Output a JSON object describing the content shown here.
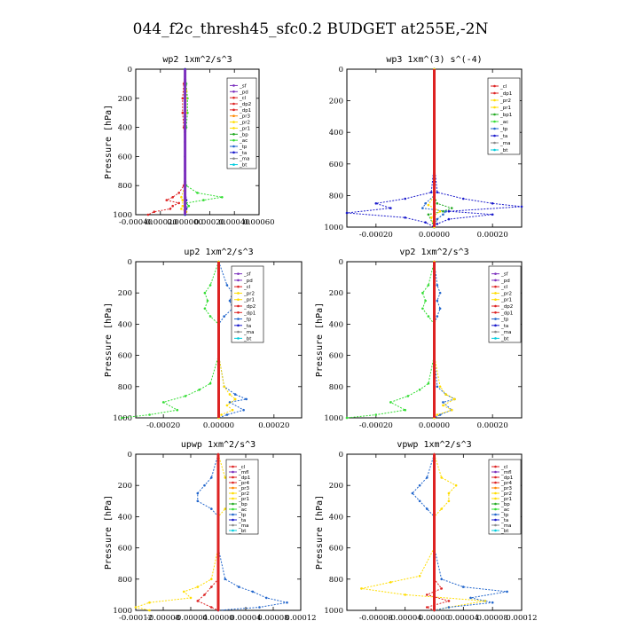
{
  "figure": {
    "title": "044_f2c_thresh45_sfc0.2  BUDGET at255E,-2N"
  },
  "colors": {
    "sf": "#7b2fbe",
    "pd": "#7b2fbe",
    "cl": "#dd2222",
    "dp2": "#dd2222",
    "dp1": "#dd2222",
    "pr4": "#dd2222",
    "pr3": "#ff8800",
    "pr2": "#ffdd00",
    "pr1": "#ffdd00",
    "bp": "#22aa22",
    "bp1": "#22aa22",
    "ac": "#33dd33",
    "tp": "#2266cc",
    "ta": "#1a1acc",
    "ma": "#888888",
    "bt": "#00ccdd",
    "mfl": "#7b2fbe"
  },
  "chart_data": [
    {
      "type": "line",
      "title": "wp2   1xm^2/s^3",
      "ylabel": "Pressure [hPa]",
      "ylim": [
        1000,
        0
      ],
      "xlim": [
        -0.0004,
        0.0006
      ],
      "xticks": [
        -0.0004,
        -0.0002,
        0.0,
        0.0002,
        0.0004,
        0.0006
      ],
      "xtick_labels": [
        "-0.00040",
        "-0.00020",
        "0.000000",
        "0.00020",
        "0.00040",
        "0.00060"
      ],
      "yticks": [
        0,
        200,
        400,
        600,
        800,
        1000
      ],
      "legend": [
        "_sf",
        "_pd",
        "_cl",
        "_dp2",
        "_dp1",
        "_pr3",
        "_pr2",
        "_pr1",
        "_bp",
        "_ac",
        "_tp",
        "_ta",
        "_ma",
        "_bt"
      ],
      "legend_keys": [
        "sf",
        "pd",
        "cl",
        "dp2",
        "dp1",
        "pr3",
        "pr2",
        "pr1",
        "bp",
        "ac",
        "tp",
        "ta",
        "ma",
        "bt"
      ],
      "series": [
        {
          "key": "ac",
          "y": [
            0,
            100,
            200,
            300,
            400,
            500,
            600,
            700,
            800,
            850,
            880,
            900,
            920,
            940,
            960,
            980,
            1000
          ],
          "x": [
            0,
            1e-05,
            2e-05,
            2e-05,
            1e-05,
            0,
            0,
            0,
            1e-05,
            0.0001,
            0.0003,
            0.00015,
            1e-05,
            3e-05,
            1e-05,
            0,
            0
          ]
        },
        {
          "key": "dp1",
          "y": [
            0,
            100,
            200,
            300,
            400,
            500,
            600,
            700,
            800,
            850,
            880,
            900,
            920,
            940,
            960,
            980,
            1000
          ],
          "x": [
            0,
            -1e-05,
            -2e-05,
            -2e-05,
            -1e-05,
            0,
            0,
            0,
            -1e-05,
            -5e-05,
            -0.0001,
            -0.00015,
            -5e-05,
            -0.0001,
            -0.00012,
            -0.00025,
            -0.0003
          ]
        },
        {
          "key": "pr2",
          "y": [
            0,
            150,
            200,
            300,
            400,
            600,
            800,
            880,
            900,
            940,
            960,
            980,
            1000
          ],
          "x": [
            0,
            1e-05,
            1e-05,
            1e-05,
            0,
            0,
            0,
            -3e-05,
            -2e-05,
            -2e-05,
            -3e-05,
            1e-05,
            0
          ]
        },
        {
          "key": "ta",
          "y": [
            0,
            200,
            400,
            600,
            800,
            900,
            960,
            980,
            1000
          ],
          "x": [
            0,
            0,
            0,
            0,
            0,
            1e-05,
            1e-05,
            0,
            0
          ]
        },
        {
          "key": "sf",
          "y": [
            0,
            200,
            400,
            600,
            800,
            900,
            1000
          ],
          "x": [
            0,
            0,
            0,
            0,
            0,
            0,
            0
          ]
        }
      ]
    },
    {
      "type": "line",
      "title": "wp3   1xm^(3) s^(-4)",
      "ylabel": "",
      "ylim": [
        1000,
        0
      ],
      "xlim": [
        -0.0003,
        0.0003
      ],
      "xticks": [
        -0.0002,
        0.0,
        0.0002
      ],
      "xtick_labels": [
        "-0.00020",
        "0.00000",
        "0.00020"
      ],
      "yticks": [
        0,
        200,
        400,
        600,
        800,
        1000
      ],
      "legend": [
        "_cl",
        "_dp1",
        "_pr2",
        "_pr1",
        "_bp1",
        "_ac",
        "_tp",
        "_ta",
        "_ma",
        "_bt"
      ],
      "legend_keys": [
        "cl",
        "dp1",
        "pr2",
        "pr1",
        "bp1",
        "ac",
        "tp",
        "ta",
        "ma",
        "bt"
      ],
      "series": [
        {
          "key": "ta",
          "y": [
            0,
            300,
            600,
            780,
            820,
            850,
            870,
            900,
            920,
            950,
            980,
            1000
          ],
          "x": [
            0,
            0,
            0,
            1e-05,
            0.0001,
            0.0002,
            0.0003,
            5e-05,
            0.0002,
            5e-05,
            1e-05,
            0
          ]
        },
        {
          "key": "ta",
          "y": [
            0,
            300,
            600,
            780,
            820,
            850,
            880,
            910,
            940,
            970,
            1000
          ],
          "x": [
            0,
            0,
            0,
            -1e-05,
            -0.0001,
            -0.0002,
            -0.00015,
            -0.0003,
            -0.0001,
            -3e-05,
            0
          ]
        },
        {
          "key": "tp",
          "y": [
            0,
            300,
            600,
            800,
            850,
            880,
            900,
            920,
            950,
            1000
          ],
          "x": [
            0,
            0,
            0,
            0,
            -3e-05,
            -4e-05,
            4e-05,
            3e-05,
            1e-05,
            0
          ]
        },
        {
          "key": "bp1",
          "y": [
            0,
            300,
            600,
            800,
            850,
            880,
            900,
            920,
            1000
          ],
          "x": [
            0,
            0,
            0,
            0,
            1e-05,
            6e-05,
            3e-05,
            -2e-05,
            0
          ]
        },
        {
          "key": "pr2",
          "y": [
            0,
            300,
            600,
            800,
            860,
            900,
            940,
            1000
          ],
          "x": [
            0,
            0,
            0,
            0,
            -2e-05,
            2e-05,
            -1e-05,
            0
          ]
        },
        {
          "key": "cl",
          "y": [
            0,
            200,
            400,
            600,
            800,
            1000
          ],
          "x": [
            0,
            0,
            0,
            0,
            0,
            0
          ]
        }
      ]
    },
    {
      "type": "line",
      "title": "up2   1xm^2/s^3",
      "ylabel": "Pressure [hPa]",
      "ylim": [
        1000,
        0
      ],
      "xlim": [
        -0.0003,
        0.0003
      ],
      "xticks": [
        -0.0002,
        0.0,
        0.0002
      ],
      "xtick_labels": [
        "-0.00020",
        "0.00000",
        "0.00020"
      ],
      "yticks": [
        0,
        200,
        400,
        600,
        800,
        1000
      ],
      "legend": [
        "_sf",
        "_pd",
        "_cl",
        "_pr2",
        "_pr1",
        "_dp2",
        "_dp1",
        "_tp",
        "_ta",
        "_ma",
        "_bt"
      ],
      "legend_keys": [
        "sf",
        "pd",
        "cl",
        "pr2",
        "pr1",
        "dp2",
        "dp1",
        "tp",
        "ta",
        "ma",
        "bt"
      ],
      "series": [
        {
          "key": "ac",
          "y": [
            0,
            150,
            200,
            250,
            300,
            350,
            400,
            600,
            780,
            820,
            860,
            900,
            950,
            980,
            1000
          ],
          "x": [
            0,
            -3e-05,
            -5e-05,
            -4e-05,
            -5e-05,
            -3e-05,
            0,
            0,
            -3e-05,
            -7e-05,
            -0.00012,
            -0.0002,
            -0.00015,
            -0.00025,
            -0.00035
          ]
        },
        {
          "key": "tp",
          "y": [
            0,
            150,
            200,
            250,
            300,
            350,
            400,
            600,
            800,
            850,
            880,
            900,
            950,
            980,
            1000
          ],
          "x": [
            0,
            3e-05,
            5e-05,
            4e-05,
            5e-05,
            2e-05,
            0,
            0,
            2e-05,
            6e-05,
            0.0001,
            4e-05,
            9e-05,
            3e-05,
            0
          ]
        },
        {
          "key": "pr1",
          "y": [
            0,
            600,
            800,
            850,
            880,
            920,
            950,
            980,
            1000
          ],
          "x": [
            0,
            0,
            2e-05,
            4e-05,
            6e-05,
            3e-05,
            5e-05,
            1e-05,
            0
          ]
        },
        {
          "key": "cl",
          "y": [
            0,
            200,
            400,
            600,
            800,
            1000
          ],
          "x": [
            0,
            0,
            0,
            0,
            0,
            0
          ]
        }
      ]
    },
    {
      "type": "line",
      "title": "vp2   1xm^2/s^3",
      "ylabel": "Pressure [hPa]",
      "ylim": [
        1000,
        0
      ],
      "xlim": [
        -0.0003,
        0.0003
      ],
      "xticks": [
        -0.0002,
        0.0,
        0.0002
      ],
      "xtick_labels": [
        "-0.00020",
        "0.00000",
        "0.00020"
      ],
      "yticks": [
        0,
        200,
        400,
        600,
        800,
        1000
      ],
      "legend": [
        "_sf",
        "_pd",
        "_cl",
        "_pr2",
        "_pr1",
        "_dp2",
        "_dp1",
        "_tp",
        "_ta",
        "_ma",
        "_bt"
      ],
      "legend_keys": [
        "sf",
        "pd",
        "cl",
        "pr2",
        "pr1",
        "dp2",
        "dp1",
        "tp",
        "ta",
        "ma",
        "bt"
      ],
      "series": [
        {
          "key": "ac",
          "y": [
            0,
            150,
            200,
            250,
            300,
            350,
            400,
            600,
            780,
            820,
            860,
            900,
            950,
            980,
            1000
          ],
          "x": [
            0,
            -2e-05,
            -4e-05,
            -3e-05,
            -4e-05,
            -2e-05,
            0,
            0,
            -2e-05,
            -5e-05,
            -9e-05,
            -0.00015,
            -0.0001,
            -0.0002,
            -0.0003
          ]
        },
        {
          "key": "tp",
          "y": [
            0,
            150,
            200,
            250,
            300,
            350,
            400,
            600,
            800,
            850,
            880,
            900,
            950,
            980,
            1000
          ],
          "x": [
            0,
            1e-05,
            2e-05,
            1e-05,
            2e-05,
            1e-05,
            0,
            0,
            1e-05,
            4e-05,
            7e-05,
            3e-05,
            6e-05,
            2e-05,
            0
          ]
        },
        {
          "key": "pr1",
          "y": [
            0,
            600,
            800,
            850,
            880,
            920,
            950,
            980,
            1000
          ],
          "x": [
            0,
            0,
            2e-05,
            4e-05,
            7e-05,
            3e-05,
            6e-05,
            1e-05,
            0
          ]
        },
        {
          "key": "cl",
          "y": [
            0,
            200,
            400,
            600,
            800,
            1000
          ],
          "x": [
            0,
            0,
            0,
            0,
            0,
            0
          ]
        }
      ]
    },
    {
      "type": "line",
      "title": "upwp   1xm^2/s^3",
      "ylabel": "Pressure [hPa]",
      "ylim": [
        1000,
        0
      ],
      "xlim": [
        -0.00012,
        0.00012
      ],
      "xticks": [
        -0.00012,
        -8e-05,
        -4e-05,
        0.0,
        4e-05,
        8e-05,
        0.00012
      ],
      "xtick_labels": [
        "-0.00012",
        "-0.00008",
        "-0.00004",
        "0.00000",
        "0.00004",
        "0.00008",
        "0.00012"
      ],
      "yticks": [
        0,
        200,
        400,
        600,
        800,
        1000
      ],
      "legend": [
        "_cl",
        "_mfl",
        "_dp1",
        "_pr4",
        "_pr3",
        "_pr2",
        "_pr1",
        "_bp",
        "_ac",
        "_tp",
        "_ta",
        "_ma",
        "_bt"
      ],
      "legend_keys": [
        "cl",
        "mfl",
        "dp1",
        "pr4",
        "pr3",
        "pr2",
        "pr1",
        "bp",
        "ac",
        "tp",
        "ta",
        "ma",
        "bt"
      ],
      "series": [
        {
          "key": "pr2",
          "y": [
            0,
            150,
            200,
            250,
            300,
            350,
            400,
            600,
            800,
            850,
            880,
            920,
            950,
            980,
            1000
          ],
          "x": [
            0,
            1e-05,
            3e-05,
            2e-05,
            3e-05,
            1e-05,
            0,
            0,
            -1e-05,
            -3e-05,
            -5e-05,
            -4e-05,
            -0.0001,
            -0.00012,
            -0.0001
          ]
        },
        {
          "key": "tp",
          "y": [
            0,
            150,
            200,
            250,
            300,
            350,
            400,
            600,
            800,
            850,
            880,
            920,
            950,
            980,
            1000
          ],
          "x": [
            0,
            -1e-05,
            -2e-05,
            -3e-05,
            -3e-05,
            -1e-05,
            0,
            0,
            1e-05,
            3e-05,
            5e-05,
            7e-05,
            0.0001,
            6e-05,
            0
          ]
        },
        {
          "key": "dp1",
          "y": [
            0,
            600,
            800,
            850,
            900,
            940,
            980,
            1000
          ],
          "x": [
            0,
            0,
            0,
            -1e-05,
            -2e-05,
            -3e-05,
            -1e-05,
            0
          ]
        },
        {
          "key": "cl",
          "y": [
            0,
            200,
            400,
            600,
            800,
            1000
          ],
          "x": [
            0,
            0,
            0,
            0,
            0,
            0
          ]
        }
      ]
    },
    {
      "type": "line",
      "title": "vpwp   1xm^2/s^3",
      "ylabel": "Pressure [hPa]",
      "ylim": [
        1000,
        0
      ],
      "xlim": [
        -0.00012,
        0.00012
      ],
      "xticks": [
        -8e-05,
        -4e-05,
        0.0,
        4e-05,
        8e-05,
        0.00012
      ],
      "xtick_labels": [
        "-0.00008",
        "-0.00004",
        "0.00000",
        "0.00004",
        "0.00008",
        "0.00012"
      ],
      "yticks": [
        0,
        200,
        400,
        600,
        800,
        1000
      ],
      "legend": [
        "_cl",
        "_mfl",
        "_dp1",
        "_pr4",
        "_pr3",
        "_pr2",
        "_pr1",
        "_bp",
        "_ac",
        "_tp",
        "_ta",
        "_ma",
        "_bt"
      ],
      "legend_keys": [
        "cl",
        "mfl",
        "dp1",
        "pr4",
        "pr3",
        "pr2",
        "pr1",
        "bp",
        "ac",
        "tp",
        "ta",
        "ma",
        "bt"
      ],
      "series": [
        {
          "key": "pr2",
          "y": [
            0,
            150,
            200,
            250,
            300,
            350,
            400,
            600,
            780,
            820,
            860,
            900,
            940,
            980,
            1000
          ],
          "x": [
            0,
            1e-05,
            3e-05,
            2e-05,
            2e-05,
            1e-05,
            0,
            0,
            -2e-05,
            -6e-05,
            -0.0001,
            -4e-05,
            7e-05,
            2e-05,
            0
          ]
        },
        {
          "key": "tp",
          "y": [
            0,
            150,
            200,
            250,
            300,
            350,
            400,
            600,
            800,
            850,
            880,
            920,
            950,
            980,
            1000
          ],
          "x": [
            0,
            -1e-05,
            -2e-05,
            -3e-05,
            -2e-05,
            -1e-05,
            0,
            0,
            1e-05,
            4e-05,
            0.0001,
            5e-05,
            8e-05,
            2e-05,
            0
          ]
        },
        {
          "key": "dp1",
          "y": [
            0,
            600,
            800,
            860,
            900,
            940,
            980,
            1000
          ],
          "x": [
            0,
            0,
            0,
            1e-05,
            -1e-05,
            2e-05,
            -1e-05,
            0
          ]
        },
        {
          "key": "cl",
          "y": [
            0,
            200,
            400,
            600,
            800,
            1000
          ],
          "x": [
            0,
            0,
            0,
            0,
            0,
            0
          ]
        }
      ]
    }
  ]
}
